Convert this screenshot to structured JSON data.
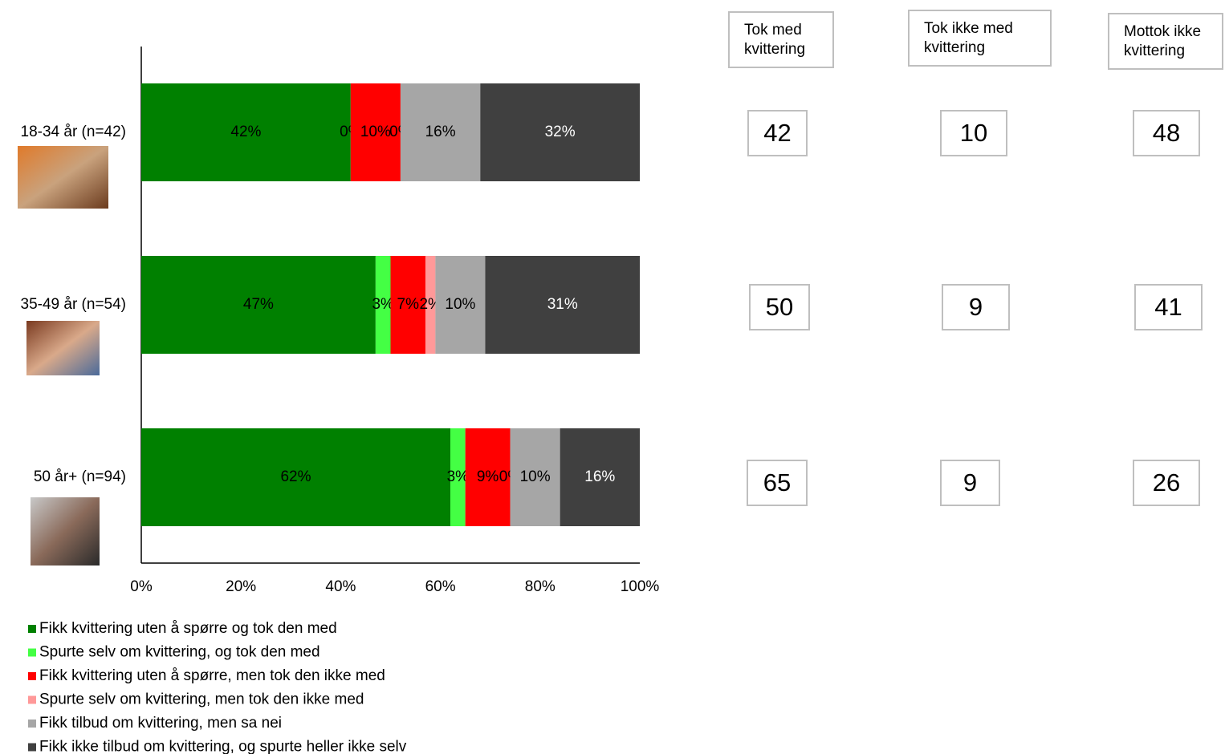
{
  "chart_data": {
    "type": "stacked-barh",
    "categories": [
      "18-34 år (n=42)",
      "35-49 år (n=54)",
      "50 år+ (n=94)"
    ],
    "series": [
      {
        "name": "Fikk kvittering uten å spørre og tok den med",
        "color": "#008000",
        "values": [
          42,
          47,
          62
        ],
        "value_labels": [
          "42%",
          "47%",
          "62%"
        ]
      },
      {
        "name": "Spurte selv om kvittering, og tok den med",
        "color": "#44ff44",
        "values": [
          0,
          3,
          3
        ],
        "value_labels": [
          "0%",
          "3%",
          "3%"
        ]
      },
      {
        "name": "Fikk kvittering uten å spørre, men tok den ikke med",
        "color": "#ff0000",
        "values": [
          10,
          7,
          9
        ],
        "value_labels": [
          "10%",
          "7%",
          "9%"
        ]
      },
      {
        "name": "Spurte selv om kvittering, men tok den ikke med",
        "color": "#ff9999",
        "values": [
          0,
          2,
          0
        ],
        "value_labels": [
          "0%",
          "2%",
          "0%"
        ]
      },
      {
        "name": "Fikk tilbud om kvittering, men sa nei",
        "color": "#a6a6a6",
        "values": [
          16,
          10,
          10
        ],
        "value_labels": [
          "16%",
          "10%",
          "10%"
        ]
      },
      {
        "name": "Fikk ikke tilbud om kvittering, og spurte heller ikke selv",
        "color": "#404040",
        "values": [
          32,
          31,
          16
        ],
        "value_labels": [
          "32%",
          "31%",
          "16%"
        ]
      }
    ],
    "xlim": [
      0,
      100
    ],
    "xticks": [
      {
        "value": 0,
        "label": "0%"
      },
      {
        "value": 20,
        "label": "20%"
      },
      {
        "value": 40,
        "label": "40%"
      },
      {
        "value": 60,
        "label": "60%"
      },
      {
        "value": 80,
        "label": "80%"
      },
      {
        "value": 100,
        "label": "100%"
      }
    ],
    "legend": "bottom-left"
  },
  "table": {
    "headers": [
      "Tok med kvittering",
      "Tok ikke med kvittering",
      "Mottok ikke kvittering"
    ],
    "rows": [
      [
        42,
        10,
        48
      ],
      [
        50,
        9,
        41
      ],
      [
        65,
        9,
        26
      ]
    ]
  }
}
